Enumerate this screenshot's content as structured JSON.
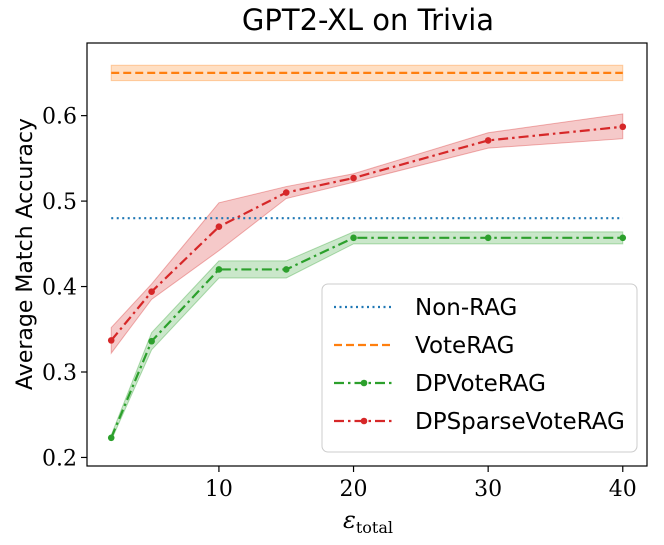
{
  "chart_data": {
    "type": "line",
    "title": "GPT2-XL on Trivia",
    "xlabel": "ε",
    "xlabel_sub": "total",
    "ylabel": "Average Match Accuracy",
    "xlim": [
      0.2,
      41.8
    ],
    "ylim": [
      0.19,
      0.685
    ],
    "xticks": [
      10,
      20,
      30,
      40
    ],
    "xtick_labels": [
      "10",
      "20",
      "30",
      "40"
    ],
    "yticks": [
      0.2,
      0.3,
      0.4,
      0.5,
      0.6
    ],
    "ytick_labels": [
      "0.2",
      "0.3",
      "0.4",
      "0.5",
      "0.6"
    ],
    "grid": false,
    "legend_position": "lower-right",
    "series": [
      {
        "name": "Non-RAG",
        "style": "dotted",
        "color": "#1f77b4",
        "markers": false,
        "x": [
          2,
          40
        ],
        "y": [
          0.48,
          0.48
        ]
      },
      {
        "name": "VoteRAG",
        "style": "dashed",
        "color": "#ff7f0e",
        "markers": false,
        "x": [
          2,
          40
        ],
        "y": [
          0.65,
          0.65
        ],
        "band_lower": [
          0.641,
          0.641
        ],
        "band_upper": [
          0.659,
          0.659
        ]
      },
      {
        "name": "DPVoteRAG",
        "style": "dashdot",
        "color": "#2ca02c",
        "markers": true,
        "x": [
          2,
          5,
          10,
          15,
          20,
          30,
          40
        ],
        "y": [
          0.223,
          0.336,
          0.42,
          0.42,
          0.457,
          0.457,
          0.457
        ],
        "band_lower": [
          0.22,
          0.326,
          0.41,
          0.41,
          0.45,
          0.45,
          0.45
        ],
        "band_upper": [
          0.226,
          0.346,
          0.43,
          0.43,
          0.464,
          0.464,
          0.464
        ]
      },
      {
        "name": "DPSparseVoteRAG",
        "style": "dashdot",
        "color": "#d62728",
        "markers": true,
        "x": [
          2,
          5,
          10,
          15,
          20,
          30,
          40
        ],
        "y": [
          0.337,
          0.394,
          0.47,
          0.51,
          0.527,
          0.571,
          0.587
        ],
        "band_lower": [
          0.322,
          0.385,
          0.442,
          0.503,
          0.522,
          0.562,
          0.573
        ],
        "band_upper": [
          0.352,
          0.403,
          0.498,
          0.517,
          0.532,
          0.58,
          0.602
        ]
      }
    ]
  }
}
